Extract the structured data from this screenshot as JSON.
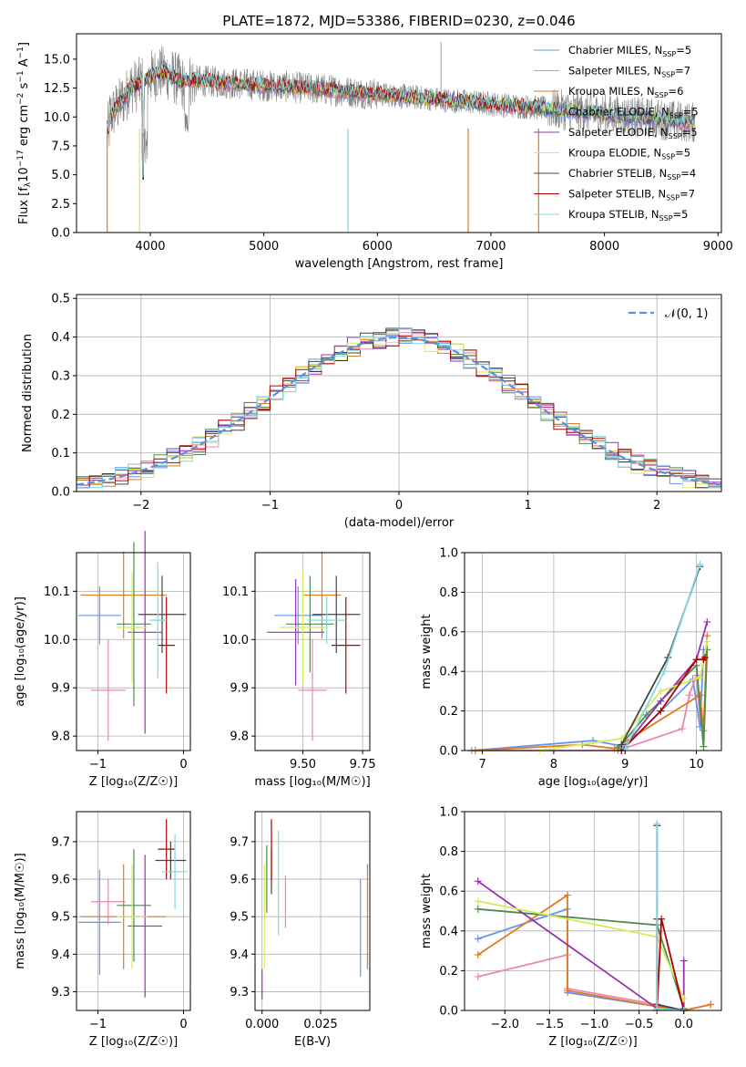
{
  "chart_data": [
    {
      "type": "line",
      "title": "PLATE=1872, MJD=53386, FIBERID=0230, z=0.046",
      "xlabel": "wavelength [Angstrom, rest frame]",
      "ylabel_parts": [
        "Flux [f",
        "λ",
        "10",
        "−17",
        " erg cm",
        "−2",
        " s",
        "−1",
        " A",
        "−1",
        "]"
      ],
      "xlim": [
        3350,
        9030
      ],
      "ylim": [
        0,
        17.2
      ],
      "xticks": [
        4000,
        5000,
        6000,
        7000,
        8000,
        9000
      ],
      "yticks": [
        0.0,
        2.5,
        5.0,
        7.5,
        10.0,
        12.5,
        15.0
      ],
      "xtick_labels": [
        "4000",
        "5000",
        "6000",
        "7000",
        "8000",
        "9000"
      ],
      "ytick_labels": [
        "0.0",
        "2.5",
        "5.0",
        "7.5",
        "10.0",
        "12.5",
        "15.0"
      ],
      "legend_position": "top-right",
      "spectrum_range": [
        3620,
        8800
      ],
      "legend": [
        {
          "base": "Chabrier MILES, N",
          "sub": "SSP",
          "tail": "=5",
          "color": "#6495ed"
        },
        {
          "base": "Salpeter MILES, N",
          "sub": "SSP",
          "tail": "=7",
          "color": "#e888b0"
        },
        {
          "base": "Kroupa MILES, N",
          "sub": "SSP",
          "tail": "=6",
          "color": "#e07b20"
        },
        {
          "base": "Chabrier ELODIE, N",
          "sub": "SSP",
          "tail": "=5",
          "color": "#4f8a4f"
        },
        {
          "base": "Salpeter ELODIE, N",
          "sub": "SSP",
          "tail": "=5",
          "color": "#9b30b0"
        },
        {
          "base": "Kroupa ELODIE, N",
          "sub": "SSP",
          "tail": "=5",
          "color": "#d8ea5a"
        },
        {
          "base": "Chabrier STELIB, N",
          "sub": "SSP",
          "tail": "=4",
          "color": "#444444"
        },
        {
          "base": "Salpeter STELIB, N",
          "sub": "SSP",
          "tail": "=7",
          "color": "#b00000"
        },
        {
          "base": "Kroupa STELIB, N",
          "sub": "SSP",
          "tail": "=5",
          "color": "#80d8e0"
        }
      ]
    },
    {
      "type": "line",
      "title": "",
      "xlabel": "(data-model)/error",
      "ylabel": "Normed distribution",
      "xlim": [
        -2.5,
        2.5
      ],
      "ylim": [
        0,
        0.51
      ],
      "xticks": [
        -2,
        -1,
        0,
        1,
        2
      ],
      "yticks": [
        0.0,
        0.1,
        0.2,
        0.3,
        0.4,
        0.5
      ],
      "xtick_labels": [
        "−2",
        "−1",
        "0",
        "1",
        "2"
      ],
      "ytick_labels": [
        "0.0",
        "0.1",
        "0.2",
        "0.3",
        "0.4",
        "0.5"
      ],
      "grid": true,
      "legend_position": "top-right",
      "reference_curve": {
        "label": "𝒩(0, 1)",
        "color": "#5b8fe0"
      },
      "bins": 50
    },
    {
      "type": "scatter",
      "xlabel": "Z [log₁₀(Z/Z☉)]",
      "ylabel": "age  [log₁₀(age/yr)]",
      "xlim": [
        -1.25,
        0.08
      ],
      "ylim": [
        9.77,
        10.18
      ],
      "xticks": [
        -1,
        0
      ],
      "yticks": [
        9.8,
        9.9,
        10.0,
        10.1
      ],
      "xtick_labels": [
        "−1",
        "0"
      ],
      "ytick_labels": [
        "9.8",
        "9.9",
        "10.0",
        "10.1"
      ],
      "grid": true,
      "points": [
        {
          "color": "#6495ed",
          "x": -0.98,
          "xerr": 0.25,
          "y": 10.05,
          "yerr": 0.06
        },
        {
          "color": "#e888b0",
          "x": -0.88,
          "xerr": 0.2,
          "y": 9.895,
          "yerr": 0.105
        },
        {
          "color": "#e07b20",
          "x": -0.7,
          "xerr": 0.5,
          "y": 10.092,
          "yerr": 0.09
        },
        {
          "color": "#4f8a4f",
          "x": -0.58,
          "xerr": 0.2,
          "y": 10.032,
          "yerr": 0.17
        },
        {
          "color": "#9b30b0",
          "x": -0.45,
          "xerr": 0.2,
          "y": 10.015,
          "yerr": 0.21
        },
        {
          "color": "#d8ea5a",
          "x": -0.6,
          "xerr": 0.18,
          "y": 10.025,
          "yerr": 0.115
        },
        {
          "color": "#444444",
          "x": -0.25,
          "xerr": 0.28,
          "y": 10.052,
          "yerr": 0.08
        },
        {
          "color": "#b00000",
          "x": -0.2,
          "xerr": 0.1,
          "y": 9.988,
          "yerr": 0.1
        },
        {
          "color": "#80d8e0",
          "x": -0.3,
          "xerr": 0.1,
          "y": 10.04,
          "yerr": 0.12
        }
      ]
    },
    {
      "type": "scatter",
      "xlabel": "mass [log₁₀(M/M☉)]",
      "ylabel": "",
      "xlim": [
        9.3,
        9.78
      ],
      "ylim": [
        9.77,
        10.18
      ],
      "xticks": [
        9.5,
        9.75
      ],
      "yticks": [
        9.8,
        9.9,
        10.0,
        10.1
      ],
      "xtick_labels": [
        "9.50",
        "9.75"
      ],
      "ytick_labels": [
        "9.8",
        "9.9",
        "10.0",
        "10.1"
      ],
      "grid": true,
      "points": [
        {
          "color": "#6495ed",
          "x": 9.48,
          "xerr": 0.1,
          "y": 10.05,
          "yerr": 0.06
        },
        {
          "color": "#e888b0",
          "x": 9.54,
          "xerr": 0.06,
          "y": 9.895,
          "yerr": 0.105
        },
        {
          "color": "#e07b20",
          "x": 9.58,
          "xerr": 0.08,
          "y": 10.092,
          "yerr": 0.09
        },
        {
          "color": "#4f8a4f",
          "x": 9.53,
          "xerr": 0.1,
          "y": 10.032,
          "yerr": 0.1
        },
        {
          "color": "#9b30b0",
          "x": 9.47,
          "xerr": 0.12,
          "y": 10.015,
          "yerr": 0.11
        },
        {
          "color": "#d8ea5a",
          "x": 9.5,
          "xerr": 0.1,
          "y": 10.025,
          "yerr": 0.115
        },
        {
          "color": "#444444",
          "x": 9.64,
          "xerr": 0.1,
          "y": 10.052,
          "yerr": 0.08
        },
        {
          "color": "#b00000",
          "x": 9.68,
          "xerr": 0.06,
          "y": 9.988,
          "yerr": 0.1
        },
        {
          "color": "#80d8e0",
          "x": 9.6,
          "xerr": 0.08,
          "y": 10.04,
          "yerr": 0.05
        }
      ]
    },
    {
      "type": "line",
      "xlabel": "age  [log₁₀(age/yr)]",
      "ylabel": "mass weight",
      "xlim": [
        6.75,
        10.35
      ],
      "ylim": [
        0,
        1.0
      ],
      "xticks": [
        7,
        8,
        9,
        10
      ],
      "yticks": [
        0.0,
        0.2,
        0.4,
        0.6,
        0.8,
        1.0
      ],
      "xtick_labels": [
        "7",
        "8",
        "9",
        "10"
      ],
      "ytick_labels": [
        "0.0",
        "0.2",
        "0.4",
        "0.6",
        "0.8",
        "1.0"
      ],
      "grid": true,
      "series": [
        {
          "color": "#6495ed",
          "x": [
            6.85,
            8.55,
            9.0,
            9.95,
            10.05,
            10.1
          ],
          "y": [
            0.0,
            0.05,
            0.02,
            0.36,
            0.12,
            0.51
          ]
        },
        {
          "color": "#e888b0",
          "x": [
            6.85,
            8.9,
            9.8,
            9.9,
            10.0,
            10.05
          ],
          "y": [
            0.0,
            0.0,
            0.11,
            0.28,
            0.38,
            0.17
          ]
        },
        {
          "color": "#e07b20",
          "x": [
            6.9,
            8.4,
            8.85,
            10.05,
            10.1,
            10.15
          ],
          "y": [
            0.0,
            0.03,
            0.01,
            0.28,
            0.1,
            0.58
          ]
        },
        {
          "color": "#4f8a4f",
          "x": [
            8.9,
            9.3,
            10.0,
            10.1,
            10.15
          ],
          "y": [
            0.01,
            0.18,
            0.43,
            0.02,
            0.51
          ]
        },
        {
          "color": "#9b30b0",
          "x": [
            8.95,
            9.5,
            10.0,
            10.15
          ],
          "y": [
            0.0,
            0.25,
            0.46,
            0.65
          ]
        },
        {
          "color": "#d8ea5a",
          "x": [
            7.8,
            8.95,
            9.5,
            10.05,
            10.15
          ],
          "y": [
            0.0,
            0.06,
            0.3,
            0.37,
            0.55
          ]
        },
        {
          "color": "#444444",
          "x": [
            8.95,
            9.6,
            10.05
          ],
          "y": [
            0.03,
            0.47,
            0.93
          ]
        },
        {
          "color": "#b00000",
          "x": [
            8.95,
            9.5,
            10.0,
            10.1,
            10.12
          ],
          "y": [
            0.0,
            0.2,
            0.46,
            0.46,
            0.47
          ]
        },
        {
          "color": "#80d8e0",
          "x": [
            9.0,
            9.55,
            10.05
          ],
          "y": [
            0.01,
            0.4,
            0.94
          ]
        }
      ]
    },
    {
      "type": "scatter",
      "xlabel": "Z [log₁₀(Z/Z☉)]",
      "ylabel": "mass [log₁₀(M/M☉)]",
      "xlim": [
        -1.25,
        0.08
      ],
      "ylim": [
        9.25,
        9.78
      ],
      "xticks": [
        -1,
        0
      ],
      "yticks": [
        9.3,
        9.4,
        9.5,
        9.6,
        9.7
      ],
      "xtick_labels": [
        "−1",
        "0"
      ],
      "ytick_labels": [
        "9.3",
        "9.4",
        "9.5",
        "9.6",
        "9.7"
      ],
      "grid": true,
      "points": [
        {
          "color": "#6495ed",
          "x": -0.98,
          "xerr": 0.25,
          "y": 9.485,
          "yerr": 0.14
        },
        {
          "color": "#e888b0",
          "x": -0.88,
          "xerr": 0.2,
          "y": 9.54,
          "yerr": 0.06
        },
        {
          "color": "#e07b20",
          "x": -0.7,
          "xerr": 0.5,
          "y": 9.5,
          "yerr": 0.14
        },
        {
          "color": "#4f8a4f",
          "x": -0.58,
          "xerr": 0.2,
          "y": 9.53,
          "yerr": 0.15
        },
        {
          "color": "#9b30b0",
          "x": -0.45,
          "xerr": 0.2,
          "y": 9.475,
          "yerr": 0.19
        },
        {
          "color": "#d8ea5a",
          "x": -0.6,
          "xerr": 0.18,
          "y": 9.5,
          "yerr": 0.14
        },
        {
          "color": "#444444",
          "x": -0.15,
          "xerr": 0.18,
          "y": 9.65,
          "yerr": 0.05
        },
        {
          "color": "#b00000",
          "x": -0.2,
          "xerr": 0.1,
          "y": 9.68,
          "yerr": 0.08
        },
        {
          "color": "#80d8e0",
          "x": -0.1,
          "xerr": 0.15,
          "y": 9.62,
          "yerr": 0.1
        }
      ]
    },
    {
      "type": "scatter",
      "xlabel": "E(B-V)",
      "ylabel": "",
      "xlim": [
        -0.003,
        0.046
      ],
      "ylim": [
        9.25,
        9.78
      ],
      "xticks": [
        0.0,
        0.025
      ],
      "yticks": [
        9.3,
        9.4,
        9.5,
        9.6,
        9.7
      ],
      "xtick_labels": [
        "0.000",
        "0.025"
      ],
      "ytick_labels": [
        "9.3",
        "9.4",
        "9.5",
        "9.6",
        "9.7"
      ],
      "grid": true,
      "points": [
        {
          "color": "#6495ed",
          "x": 0.042,
          "y": 9.47,
          "yerr": 0.13
        },
        {
          "color": "#e888b0",
          "x": 0.01,
          "y": 9.54,
          "yerr": 0.07
        },
        {
          "color": "#e07b20",
          "x": 0.045,
          "y": 9.5,
          "yerr": 0.14
        },
        {
          "color": "#4f8a4f",
          "x": 0.002,
          "y": 9.6,
          "yerr": 0.09
        },
        {
          "color": "#9b30b0",
          "x": 0.0,
          "y": 9.32,
          "yerr": 0.04
        },
        {
          "color": "#d8ea5a",
          "x": 0.001,
          "y": 9.5,
          "yerr": 0.14
        },
        {
          "color": "#444444",
          "x": 0.004,
          "y": 9.62,
          "yerr": 0.06
        },
        {
          "color": "#b00000",
          "x": 0.004,
          "y": 9.68,
          "yerr": 0.08
        },
        {
          "color": "#80d8e0",
          "x": 0.007,
          "y": 9.59,
          "yerr": 0.14
        }
      ]
    },
    {
      "type": "line",
      "xlabel": "Z [log₁₀(Z/Z☉)]",
      "ylabel": "mass weight",
      "xlim": [
        -2.45,
        0.42
      ],
      "ylim": [
        0,
        1.0
      ],
      "xticks": [
        -2.0,
        -1.5,
        -1.0,
        -0.5,
        0.0
      ],
      "yticks": [
        0.0,
        0.2,
        0.4,
        0.6,
        0.8,
        1.0
      ],
      "xtick_labels": [
        "−2.0",
        "−1.5",
        "−1.0",
        "−0.5",
        "0.0"
      ],
      "ytick_labels": [
        "0.0",
        "0.2",
        "0.4",
        "0.6",
        "0.8",
        "1.0"
      ],
      "grid": true,
      "series": [
        {
          "color": "#6495ed",
          "x": [
            -2.3,
            -1.3,
            -1.3,
            -0.3,
            0.0
          ],
          "y": [
            0.36,
            0.51,
            0.09,
            0.02,
            0.0
          ]
        },
        {
          "color": "#e888b0",
          "x": [
            -2.3,
            -1.3,
            -1.3,
            -0.3,
            0.0,
            0.3
          ],
          "y": [
            0.17,
            0.28,
            0.11,
            0.03,
            0.0,
            0.03
          ]
        },
        {
          "color": "#e07b20",
          "x": [
            -2.3,
            -1.3,
            -1.3,
            -0.3,
            0.0,
            0.3
          ],
          "y": [
            0.28,
            0.58,
            0.1,
            0.02,
            0.0,
            0.03
          ]
        },
        {
          "color": "#4f8a4f",
          "x": [
            -2.3,
            -0.3,
            0.0
          ],
          "y": [
            0.51,
            0.43,
            0.01
          ]
        },
        {
          "color": "#9b30b0",
          "x": [
            -2.3,
            -0.3,
            0.0,
            0.0
          ],
          "y": [
            0.65,
            0.01,
            0.0,
            0.25
          ]
        },
        {
          "color": "#d8ea5a",
          "x": [
            -2.3,
            -0.3,
            0.0
          ],
          "y": [
            0.55,
            0.37,
            0.06
          ]
        },
        {
          "color": "#444444",
          "x": [
            -0.3,
            -0.3,
            0.0
          ],
          "y": [
            0.93,
            0.03,
            0.0
          ]
        },
        {
          "color": "#b00000",
          "x": [
            -0.3,
            -0.3,
            -0.25,
            0.0
          ],
          "y": [
            0.46,
            0.0,
            0.46,
            0.0
          ]
        },
        {
          "color": "#80d8e0",
          "x": [
            -0.3,
            -0.3,
            0.0
          ],
          "y": [
            0.94,
            0.01,
            0.0
          ]
        }
      ]
    }
  ]
}
